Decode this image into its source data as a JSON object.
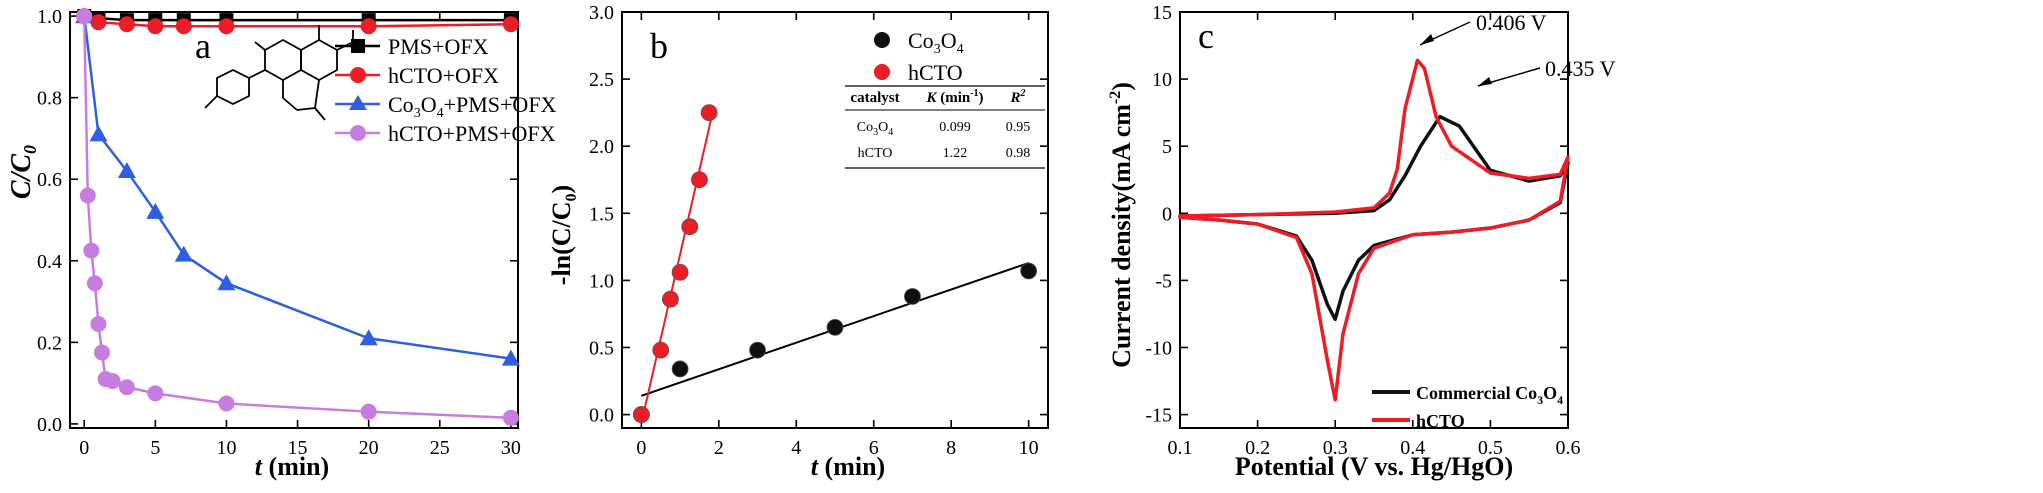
{
  "chart_data": [
    {
      "type": "line",
      "panel_label": "a",
      "xlabel": "t (min)",
      "ylabel": "C/C0",
      "xlim": [
        -1,
        30.5
      ],
      "ylim": [
        -0.01,
        1.01
      ],
      "xticks": [
        "0",
        "5",
        "10",
        "15",
        "20",
        "25",
        "30"
      ],
      "yticks": [
        "0.0",
        "0.2",
        "0.4",
        "0.6",
        "0.8",
        "1.0"
      ],
      "legend_position": "top-right",
      "series": [
        {
          "name": "PMS+OFX",
          "color": "#000000",
          "marker": "square",
          "x": [
            0,
            1,
            3,
            5,
            7,
            10,
            20,
            30
          ],
          "y": [
            1.0,
            0.995,
            0.99,
            0.99,
            0.99,
            0.99,
            0.99,
            0.99
          ]
        },
        {
          "name": "hCTO+OFX",
          "color": "#ee1c25",
          "marker": "circle",
          "x": [
            0,
            1,
            3,
            5,
            7,
            10,
            20,
            30
          ],
          "y": [
            1.0,
            0.985,
            0.98,
            0.975,
            0.975,
            0.975,
            0.975,
            0.98
          ]
        },
        {
          "name": "Co3O4+PMS+OFX",
          "color": "#2e5fe0",
          "marker": "triangle",
          "x": [
            0,
            1,
            3,
            5,
            7,
            10,
            20,
            30
          ],
          "y": [
            1.0,
            0.71,
            0.62,
            0.52,
            0.415,
            0.345,
            0.21,
            0.16
          ]
        },
        {
          "name": "hCTO+PMS+OFX",
          "color": "#c77ddf",
          "marker": "circle",
          "x": [
            0,
            0.25,
            0.5,
            0.75,
            1,
            1.25,
            1.5,
            2,
            3,
            5,
            10,
            20,
            30
          ],
          "y": [
            1.0,
            0.56,
            0.425,
            0.345,
            0.245,
            0.175,
            0.11,
            0.105,
            0.09,
            0.075,
            0.05,
            0.03,
            0.015
          ]
        }
      ]
    },
    {
      "type": "scatter",
      "panel_label": "b",
      "xlabel": "t (min)",
      "ylabel": "-ln(C/C0)",
      "xlim": [
        -0.5,
        10.5
      ],
      "ylim": [
        -0.1,
        3.0
      ],
      "xticks": [
        "0",
        "2",
        "4",
        "6",
        "8",
        "10"
      ],
      "yticks": [
        "0.0",
        "0.5",
        "1.0",
        "1.5",
        "2.0",
        "2.5",
        "3.0"
      ],
      "legend_position": "top-right",
      "series": [
        {
          "name": "Co3O4",
          "color": "#111111",
          "x": [
            0,
            1,
            3,
            5,
            7,
            10
          ],
          "y": [
            0,
            0.34,
            0.48,
            0.65,
            0.88,
            1.07
          ],
          "fit_line": {
            "x": [
              0,
              10
            ],
            "y": [
              0.14,
              1.13
            ]
          }
        },
        {
          "name": "hCTO",
          "color": "#ee1c25",
          "x": [
            0,
            0.5,
            0.75,
            1,
            1.25,
            1.5,
            1.75
          ],
          "y": [
            0,
            0.48,
            0.86,
            1.06,
            1.4,
            1.75,
            2.25
          ],
          "fit_line": {
            "x": [
              0.05,
              1.8
            ],
            "y": [
              0.0,
              2.2
            ]
          }
        }
      ],
      "table": {
        "headers": [
          "catalyst",
          "K (min-1)",
          "R2"
        ],
        "rows": [
          [
            "Co3O4",
            "0.099",
            "0.95"
          ],
          [
            "hCTO",
            "1.22",
            "0.98"
          ]
        ]
      }
    },
    {
      "type": "line",
      "panel_label": "c",
      "xlabel": "Potential (V vs. Hg/HgO)",
      "ylabel": "Current density(mA cm-2)",
      "xlim": [
        0.1,
        0.6
      ],
      "ylim": [
        -16,
        15
      ],
      "xticks": [
        "0.1",
        "0.2",
        "0.3",
        "0.4",
        "0.5",
        "0.6"
      ],
      "yticks": [
        "-15",
        "-10",
        "-5",
        "0",
        "5",
        "10",
        "15"
      ],
      "legend_position": "bottom-right",
      "annotations": [
        {
          "text": "0.406 V",
          "x": 0.406,
          "y": 11.4
        },
        {
          "text": "0.435 V",
          "x": 0.435,
          "y": 7.2
        }
      ],
      "series": [
        {
          "name": "Commercial Co3O4",
          "color": "#111111",
          "x": [
            0.1,
            0.2,
            0.3,
            0.35,
            0.37,
            0.39,
            0.41,
            0.435,
            0.46,
            0.5,
            0.55,
            0.59,
            0.6,
            0.59,
            0.55,
            0.5,
            0.45,
            0.4,
            0.35,
            0.33,
            0.31,
            0.3,
            0.29,
            0.27,
            0.25,
            0.2,
            0.15,
            0.1
          ],
          "y": [
            -0.2,
            -0.1,
            0.0,
            0.2,
            1.0,
            2.8,
            5.0,
            7.2,
            6.5,
            3.2,
            2.4,
            2.8,
            3.8,
            0.8,
            -0.5,
            -1.1,
            -1.4,
            -1.6,
            -2.4,
            -3.5,
            -5.8,
            -7.9,
            -6.8,
            -3.5,
            -1.7,
            -0.8,
            -0.5,
            -0.3
          ]
        },
        {
          "name": "hCTO",
          "color": "#ee1c25",
          "x": [
            0.1,
            0.2,
            0.3,
            0.35,
            0.37,
            0.38,
            0.39,
            0.406,
            0.415,
            0.43,
            0.45,
            0.5,
            0.55,
            0.59,
            0.6,
            0.59,
            0.55,
            0.5,
            0.45,
            0.4,
            0.35,
            0.33,
            0.31,
            0.3,
            0.29,
            0.27,
            0.25,
            0.2,
            0.15,
            0.1
          ],
          "y": [
            -0.2,
            -0.1,
            0.1,
            0.4,
            1.5,
            3.3,
            7.8,
            11.4,
            10.8,
            7.2,
            5.0,
            3.0,
            2.6,
            2.9,
            4.2,
            0.9,
            -0.5,
            -1.1,
            -1.4,
            -1.6,
            -2.6,
            -4.5,
            -9.0,
            -13.9,
            -11.0,
            -4.5,
            -1.8,
            -0.8,
            -0.5,
            -0.3
          ]
        }
      ]
    }
  ]
}
